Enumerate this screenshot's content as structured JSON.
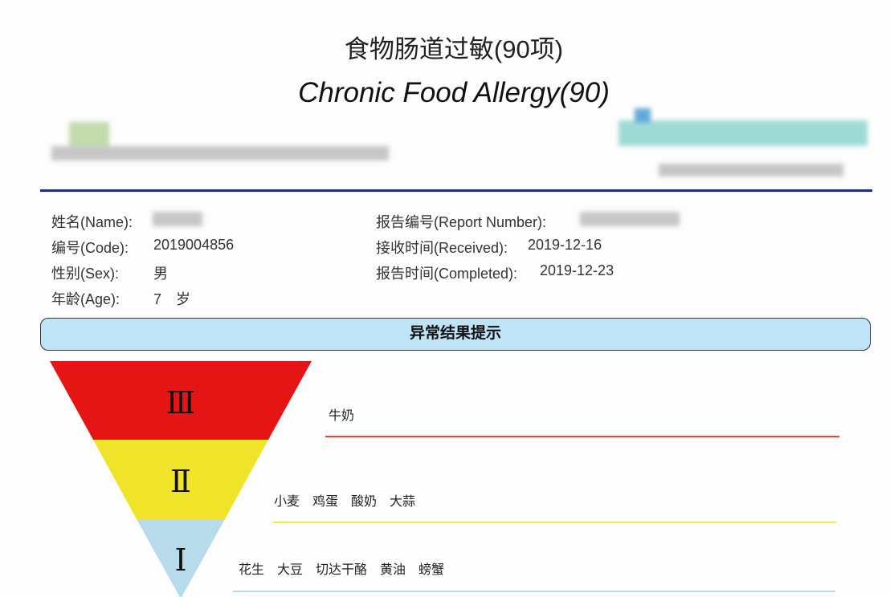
{
  "header": {
    "title_cn": "食物肠道过敏(90项)",
    "title_en": "Chronic Food Allergy(90)"
  },
  "patient": {
    "name_label": "姓名(Name):",
    "code_label": "编号(Code):",
    "code": "2019004856",
    "sex_label": "性别(Sex):",
    "sex": "男",
    "age_label": "年龄(Age):",
    "age": "7　岁"
  },
  "report": {
    "number_label": "报告编号(Report Number):",
    "received_label": "接收时间(Received):",
    "received": "2019-12-16",
    "completed_label": "报告时间(Completed):",
    "completed": "2019-12-23"
  },
  "banner": "异常结果提示",
  "levels": [
    {
      "level": "Ⅲ",
      "color": "#e51515",
      "line_color": "#e8442e",
      "foods": "牛奶"
    },
    {
      "level": "Ⅱ",
      "color": "#f0e42a",
      "line_color": "#f2e640",
      "foods": "小麦　鸡蛋　酸奶　大蒜"
    },
    {
      "level": "Ⅰ",
      "color": "#b7dbea",
      "line_color": "#b7dbea",
      "foods": "花生　大豆　切达干酪　黄油　螃蟹"
    }
  ]
}
